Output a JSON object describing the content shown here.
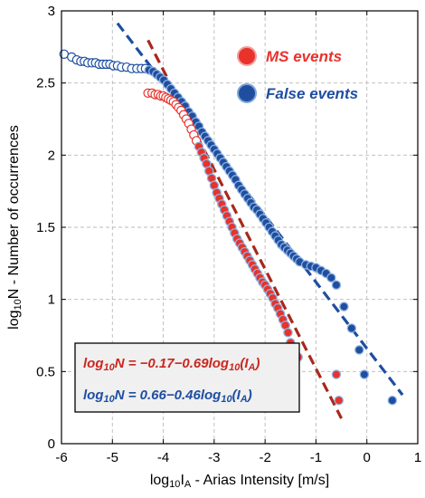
{
  "chart_data": {
    "type": "scatter",
    "title": "",
    "xlabel": {
      "main": "log",
      "sub": "10",
      "var": "I",
      "varsub": "A",
      "rest": " - Arias Intensity [m/s]"
    },
    "ylabel": {
      "main": "log",
      "sub": "10",
      "rest": "N - Number of occurrences"
    },
    "xlim": [
      -6,
      1
    ],
    "ylim": [
      0,
      3
    ],
    "xticks": [
      "-6",
      "-5",
      "-4",
      "-3",
      "-2",
      "-1",
      "0",
      "1"
    ],
    "yticks": [
      "0",
      "0.5",
      "1",
      "1.5",
      "2",
      "2.5",
      "3"
    ],
    "grid": true,
    "legend_position": "top-right",
    "colors": {
      "ms": "#e8322b",
      "ms_fit": "#a8281c",
      "false": "#1f4ea1",
      "false_fit": "#1f4ea1",
      "box_bg": "#f0f0f0"
    },
    "series": [
      {
        "name": "MS events",
        "hollow_until": -3.3,
        "x": [
          -4.3,
          -4.22,
          -4.16,
          -4.1,
          -4.05,
          -4.0,
          -3.95,
          -3.9,
          -3.85,
          -3.8,
          -3.75,
          -3.7,
          -3.65,
          -3.6,
          -3.55,
          -3.5,
          -3.45,
          -3.4,
          -3.35,
          -3.3,
          -3.25,
          -3.2,
          -3.15,
          -3.1,
          -3.05,
          -3.0,
          -2.95,
          -2.9,
          -2.85,
          -2.8,
          -2.75,
          -2.7,
          -2.65,
          -2.6,
          -2.55,
          -2.5,
          -2.45,
          -2.4,
          -2.35,
          -2.3,
          -2.25,
          -2.2,
          -2.15,
          -2.1,
          -2.05,
          -2.0,
          -1.95,
          -1.9,
          -1.85,
          -1.8,
          -1.75,
          -1.7,
          -1.65,
          -1.6,
          -1.55,
          -1.5,
          -1.35,
          -0.6,
          -0.55
        ],
        "y": [
          2.43,
          2.43,
          2.42,
          2.42,
          2.41,
          2.41,
          2.4,
          2.39,
          2.38,
          2.37,
          2.35,
          2.33,
          2.31,
          2.28,
          2.25,
          2.22,
          2.18,
          2.14,
          2.1,
          2.06,
          2.02,
          1.98,
          1.94,
          1.89,
          1.84,
          1.79,
          1.74,
          1.7,
          1.66,
          1.62,
          1.58,
          1.54,
          1.5,
          1.46,
          1.42,
          1.39,
          1.36,
          1.33,
          1.3,
          1.27,
          1.24,
          1.21,
          1.18,
          1.15,
          1.12,
          1.1,
          1.07,
          1.04,
          1.01,
          0.97,
          0.94,
          0.9,
          0.86,
          0.82,
          0.77,
          0.7,
          0.6,
          0.48,
          0.3
        ]
      },
      {
        "name": "False events",
        "hollow_until": -4.3,
        "x": [
          -5.95,
          -5.8,
          -5.7,
          -5.62,
          -5.55,
          -5.48,
          -5.4,
          -5.33,
          -5.26,
          -5.19,
          -5.12,
          -5.05,
          -4.98,
          -4.9,
          -4.82,
          -4.72,
          -4.62,
          -4.52,
          -4.43,
          -4.35,
          -4.28,
          -4.2,
          -4.13,
          -4.06,
          -3.99,
          -3.92,
          -3.85,
          -3.78,
          -3.71,
          -3.64,
          -3.57,
          -3.5,
          -3.43,
          -3.36,
          -3.3,
          -3.24,
          -3.18,
          -3.12,
          -3.06,
          -3.0,
          -2.94,
          -2.88,
          -2.82,
          -2.76,
          -2.7,
          -2.64,
          -2.58,
          -2.52,
          -2.46,
          -2.4,
          -2.34,
          -2.28,
          -2.22,
          -2.16,
          -2.1,
          -2.04,
          -1.98,
          -1.92,
          -1.86,
          -1.8,
          -1.74,
          -1.68,
          -1.62,
          -1.56,
          -1.5,
          -1.44,
          -1.38,
          -1.32,
          -1.2,
          -1.1,
          -1.0,
          -0.9,
          -0.8,
          -0.7,
          -0.6,
          -0.45,
          -0.3,
          -0.15,
          -0.05,
          0.5
        ],
        "y": [
          2.7,
          2.68,
          2.66,
          2.65,
          2.65,
          2.64,
          2.64,
          2.64,
          2.63,
          2.63,
          2.63,
          2.63,
          2.62,
          2.62,
          2.61,
          2.61,
          2.6,
          2.6,
          2.6,
          2.6,
          2.59,
          2.58,
          2.56,
          2.54,
          2.52,
          2.49,
          2.46,
          2.43,
          2.4,
          2.37,
          2.34,
          2.3,
          2.27,
          2.23,
          2.2,
          2.16,
          2.13,
          2.1,
          2.07,
          2.04,
          2.01,
          1.98,
          1.95,
          1.92,
          1.89,
          1.86,
          1.83,
          1.79,
          1.76,
          1.73,
          1.7,
          1.67,
          1.64,
          1.62,
          1.59,
          1.56,
          1.53,
          1.5,
          1.47,
          1.44,
          1.41,
          1.38,
          1.36,
          1.34,
          1.32,
          1.3,
          1.28,
          1.26,
          1.24,
          1.23,
          1.22,
          1.2,
          1.18,
          1.15,
          1.1,
          0.95,
          0.8,
          0.65,
          0.48,
          0.3
        ]
      }
    ],
    "fits": [
      {
        "series": "MS events",
        "intercept": -0.17,
        "slope": -0.69,
        "x_range": [
          -4.3,
          -0.5
        ]
      },
      {
        "series": "False events",
        "intercept": 0.66,
        "slope": -0.46,
        "x_range": [
          -4.9,
          0.7
        ]
      }
    ],
    "legend": [
      {
        "label": "MS events",
        "color": "#e8322b"
      },
      {
        "label": "False events",
        "color": "#1f4ea1"
      }
    ],
    "equations": [
      {
        "lhs": "log",
        "lhs_sub": "10",
        "mid": "N = −0.17−0.69log",
        "rhs_sub": "10",
        "tail_open": "(I",
        "tail_sub": "A",
        "tail_close": ")",
        "color": "#c8281f"
      },
      {
        "lhs": "log",
        "lhs_sub": "10",
        "mid": "N = 0.66−0.46log",
        "rhs_sub": "10",
        "tail_open": "(I",
        "tail_sub": "A",
        "tail_close": ")",
        "color": "#1f4ea1"
      }
    ]
  }
}
